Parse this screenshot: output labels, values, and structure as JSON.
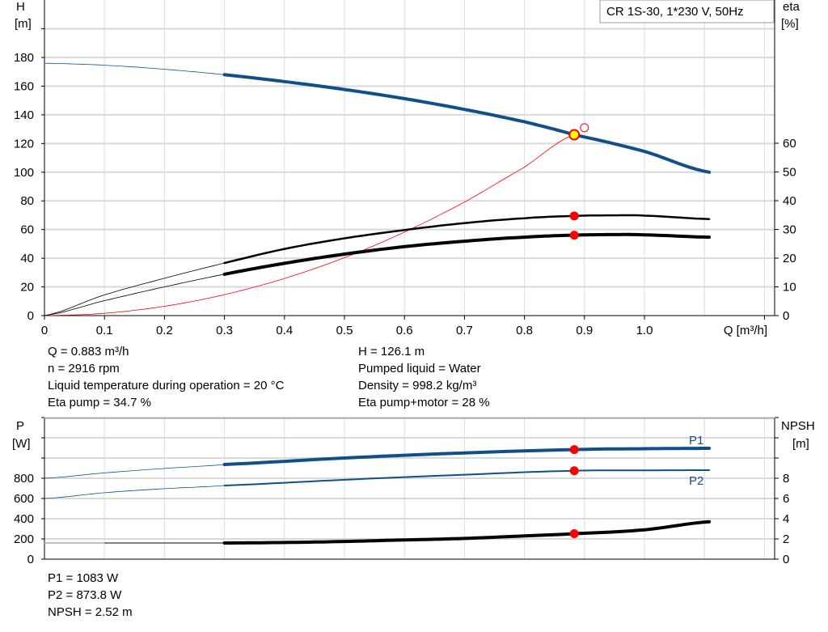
{
  "legend_box": "CR 1S-30, 1*230 V, 50Hz",
  "colors": {
    "head": "#124f8a",
    "eta": "#000000",
    "system": "#ff0000",
    "marker": "#ff0000",
    "duty_fill": "#ffff00",
    "grid": "#d9d9d9"
  },
  "chart_data": [
    {
      "type": "line",
      "xlabel": "Q [m³/h]",
      "ylabel": "H\n[m]",
      "ylabel_parts": [
        "H",
        "[m]"
      ],
      "y2label_parts": [
        "eta",
        "[%]"
      ],
      "xlim": [
        0,
        1.2
      ],
      "ylim": [
        0,
        200
      ],
      "y2lim": [
        0,
        112.7
      ],
      "xticks": [
        "0",
        "0.1",
        "0.2",
        "0.3",
        "0.4",
        "0.5",
        "0.6",
        "0.7",
        "0.8",
        "0.9",
        "1.0"
      ],
      "yticks": [
        "0",
        "20",
        "40",
        "60",
        "80",
        "100",
        "120",
        "140",
        "160",
        "180"
      ],
      "y2ticks": [
        "0",
        "10",
        "20",
        "30",
        "40",
        "50",
        "60"
      ],
      "grid": true,
      "series": [
        {
          "key": "H",
          "axis": "left",
          "x": [
            0,
            0.1,
            0.2,
            0.3,
            0.4,
            0.5,
            0.6,
            0.7,
            0.8,
            0.883,
            1.0,
            1.108
          ],
          "y": [
            176,
            174.6,
            171.8,
            168,
            163.2,
            157.7,
            151.3,
            143.8,
            135.2,
            126.1,
            114.5,
            100
          ]
        },
        {
          "key": "eta_pump",
          "axis": "right",
          "x": [
            0,
            0.1,
            0.2,
            0.3,
            0.4,
            0.5,
            0.6,
            0.7,
            0.8,
            0.883,
            0.95,
            1.0,
            1.108
          ],
          "y": [
            0,
            7.2,
            13,
            18.3,
            23.2,
            26.9,
            29.8,
            32.2,
            33.9,
            34.7,
            34.9,
            34.8,
            33.6
          ]
        },
        {
          "key": "eta_total",
          "axis": "right",
          "x": [
            0,
            0.1,
            0.2,
            0.3,
            0.4,
            0.5,
            0.6,
            0.7,
            0.8,
            0.883,
            0.95,
            1.0,
            1.108
          ],
          "y": [
            0,
            5.2,
            10,
            14.4,
            18.2,
            21.4,
            24,
            25.9,
            27.3,
            28,
            28.2,
            28.1,
            27.3
          ]
        },
        {
          "key": "system",
          "axis": "left",
          "x": [
            0,
            0.1,
            0.2,
            0.3,
            0.4,
            0.5,
            0.6,
            0.7,
            0.8,
            0.883
          ],
          "y": [
            0,
            1.6,
            6.5,
            14.6,
            25.9,
            40.4,
            58.2,
            79.2,
            103.5,
            126.1
          ]
        }
      ],
      "duty_point": {
        "q": 0.883,
        "h": 126.1
      },
      "requested_point": {
        "q": 0.9,
        "h": 131
      },
      "eta_markers": [
        {
          "q": 0.883,
          "eta": 34.7
        },
        {
          "q": 0.883,
          "eta": 28
        }
      ]
    },
    {
      "type": "line",
      "ylabel_parts": [
        "P",
        "[W]"
      ],
      "y2label_parts": [
        "NPSH",
        "[m]"
      ],
      "xlim": [
        0,
        1.2
      ],
      "ylim": [
        0,
        1400
      ],
      "y2lim": [
        0,
        14
      ],
      "yticks": [
        "0",
        "200",
        "400",
        "600",
        "800"
      ],
      "y2ticks": [
        "0",
        "2",
        "4",
        "6",
        "8"
      ],
      "grid": true,
      "series": [
        {
          "key": "P1",
          "name": "P1",
          "axis": "left",
          "x": [
            0,
            0.1,
            0.2,
            0.3,
            0.5,
            0.7,
            0.883,
            1.0,
            1.108
          ],
          "y": [
            800,
            853,
            897,
            936,
            1000,
            1050,
            1083,
            1092,
            1096
          ]
        },
        {
          "key": "P2",
          "name": "P2",
          "axis": "left",
          "x": [
            0,
            0.1,
            0.2,
            0.3,
            0.5,
            0.7,
            0.883,
            1.0,
            1.108
          ],
          "y": [
            600,
            657,
            697,
            728,
            785,
            835,
            873.8,
            878,
            880
          ]
        },
        {
          "key": "NPSH",
          "axis": "right",
          "x": [
            0,
            0.1,
            0.3,
            0.4,
            0.5,
            0.6,
            0.7,
            0.8,
            0.883,
            1.0,
            1.108
          ],
          "y": [
            1.6,
            1.6,
            1.6,
            1.65,
            1.75,
            1.9,
            2.05,
            2.3,
            2.52,
            2.9,
            3.7
          ]
        }
      ],
      "markers": [
        {
          "q": 0.883,
          "p": 1083
        },
        {
          "q": 0.883,
          "p": 873.8
        },
        {
          "q": 0.883,
          "npsh": 2.52
        }
      ]
    }
  ],
  "info_top_left": [
    "Q = 0.883 m³/h",
    "n = 2916 rpm",
    "Liquid temperature during operation = 20 °C",
    "Eta pump = 34.7 %"
  ],
  "info_top_right": [
    "H = 126.1 m",
    "Pumped liquid = Water",
    "Density = 998.2 kg/m³",
    "Eta pump+motor = 28 %"
  ],
  "info_bottom": [
    "P1 = 1083 W",
    "P2 = 873.8 W",
    "NPSH = 2.52 m"
  ]
}
